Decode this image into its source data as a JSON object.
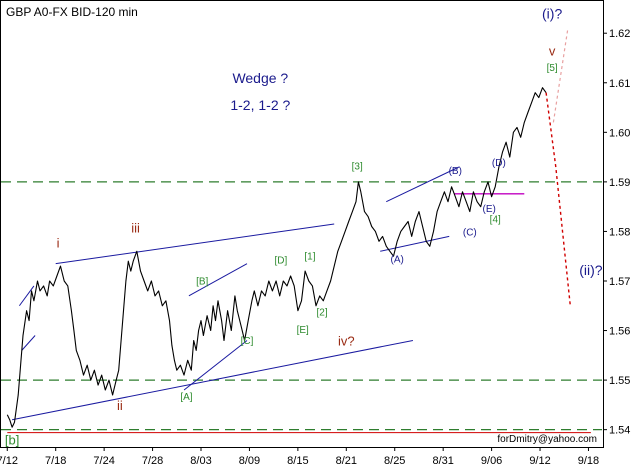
{
  "chart_data": {
    "type": "line",
    "title": "GBP A0-FX BID-120 min",
    "watermark": "forDmitry@yahoo.com",
    "colors": {
      "price": "#000000",
      "channel": "#1a1aa0",
      "hline": "#2e7d2e",
      "magenta": "#c000c0",
      "forecast": "#d00000",
      "forecast_alt": "#e8a0a0",
      "green_label": "#2e8b2e",
      "red_label": "#9a2b14",
      "blue_label": "#1a1a8c",
      "axis_text": "#000000"
    },
    "y_ticks": [
      "1.62",
      "1.61",
      "1.60",
      "1.59",
      "1.58",
      "1.57",
      "1.56",
      "1.55",
      "1.54"
    ],
    "y_tick_values": [
      1.62,
      1.61,
      1.6,
      1.59,
      1.58,
      1.57,
      1.56,
      1.55,
      1.54
    ],
    "x_ticks": [
      "7/12",
      "7/18",
      "7/24",
      "7/28",
      "8/03",
      "8/09",
      "8/15",
      "8/21",
      "8/25",
      "8/31",
      "9/06",
      "9/12",
      "9/18"
    ],
    "x_tick_index": [
      0,
      4,
      8,
      12,
      16,
      20,
      24,
      28,
      32,
      36,
      40,
      44,
      48
    ],
    "ylim": [
      1.5365,
      1.6265
    ],
    "xlim": [
      -0.6,
      49.2
    ],
    "price_series": [
      [
        0.0,
        1.543
      ],
      [
        0.2,
        1.542
      ],
      [
        0.4,
        1.5405
      ],
      [
        0.6,
        1.5415
      ],
      [
        0.9,
        1.547
      ],
      [
        1.1,
        1.553
      ],
      [
        1.3,
        1.559
      ],
      [
        1.6,
        1.564
      ],
      [
        1.8,
        1.562
      ],
      [
        2.0,
        1.568
      ],
      [
        2.2,
        1.566
      ],
      [
        2.5,
        1.57
      ],
      [
        2.7,
        1.568
      ],
      [
        3.0,
        1.569
      ],
      [
        3.3,
        1.567
      ],
      [
        3.5,
        1.57
      ],
      [
        3.8,
        1.569
      ],
      [
        4.1,
        1.571
      ],
      [
        4.4,
        1.573
      ],
      [
        4.7,
        1.57
      ],
      [
        5.0,
        1.569
      ],
      [
        5.3,
        1.564
      ],
      [
        5.5,
        1.56
      ],
      [
        5.7,
        1.556
      ],
      [
        6.0,
        1.554
      ],
      [
        6.3,
        1.551
      ],
      [
        6.6,
        1.553
      ],
      [
        6.9,
        1.55
      ],
      [
        7.2,
        1.552
      ],
      [
        7.5,
        1.549
      ],
      [
        7.8,
        1.551
      ],
      [
        8.1,
        1.548
      ],
      [
        8.4,
        1.55
      ],
      [
        8.7,
        1.547
      ],
      [
        9.0,
        1.55
      ],
      [
        9.2,
        1.552
      ],
      [
        9.4,
        1.558
      ],
      [
        9.6,
        1.564
      ],
      [
        9.8,
        1.57
      ],
      [
        10.0,
        1.574
      ],
      [
        10.2,
        1.572
      ],
      [
        10.4,
        1.574
      ],
      [
        10.7,
        1.576
      ],
      [
        11.0,
        1.572
      ],
      [
        11.3,
        1.57
      ],
      [
        11.6,
        1.568
      ],
      [
        11.9,
        1.57
      ],
      [
        12.2,
        1.567
      ],
      [
        12.5,
        1.568
      ],
      [
        12.8,
        1.565
      ],
      [
        13.1,
        1.566
      ],
      [
        13.4,
        1.562
      ],
      [
        13.6,
        1.557
      ],
      [
        13.8,
        1.554
      ],
      [
        14.0,
        1.552
      ],
      [
        14.3,
        1.553
      ],
      [
        14.6,
        1.551
      ],
      [
        14.9,
        1.554
      ],
      [
        15.2,
        1.552
      ],
      [
        15.4,
        1.558
      ],
      [
        15.6,
        1.556
      ],
      [
        15.8,
        1.56
      ],
      [
        16.0,
        1.562
      ],
      [
        16.2,
        1.559
      ],
      [
        16.5,
        1.563
      ],
      [
        16.8,
        1.56
      ],
      [
        17.0,
        1.565
      ],
      [
        17.2,
        1.562
      ],
      [
        17.4,
        1.566
      ],
      [
        17.7,
        1.562
      ],
      [
        17.9,
        1.558
      ],
      [
        18.2,
        1.564
      ],
      [
        18.5,
        1.56
      ],
      [
        18.8,
        1.567
      ],
      [
        19.0,
        1.564
      ],
      [
        19.3,
        1.561
      ],
      [
        19.6,
        1.558
      ],
      [
        19.9,
        1.562
      ],
      [
        20.2,
        1.566
      ],
      [
        20.4,
        1.568
      ],
      [
        20.7,
        1.565
      ],
      [
        21.0,
        1.568
      ],
      [
        21.3,
        1.567
      ],
      [
        21.6,
        1.57
      ],
      [
        21.9,
        1.568
      ],
      [
        22.2,
        1.57
      ],
      [
        22.5,
        1.567
      ],
      [
        22.8,
        1.57
      ],
      [
        23.1,
        1.569
      ],
      [
        23.4,
        1.571
      ],
      [
        23.7,
        1.569
      ],
      [
        24.0,
        1.564
      ],
      [
        24.3,
        1.566
      ],
      [
        24.6,
        1.572
      ],
      [
        24.9,
        1.57
      ],
      [
        25.2,
        1.569
      ],
      [
        25.5,
        1.565
      ],
      [
        25.8,
        1.567
      ],
      [
        26.1,
        1.566
      ],
      [
        26.4,
        1.568
      ],
      [
        26.7,
        1.57
      ],
      [
        27.0,
        1.573
      ],
      [
        27.3,
        1.576
      ],
      [
        27.6,
        1.578
      ],
      [
        27.9,
        1.58
      ],
      [
        28.2,
        1.582
      ],
      [
        28.5,
        1.584
      ],
      [
        28.8,
        1.586
      ],
      [
        29.0,
        1.59
      ],
      [
        29.2,
        1.588
      ],
      [
        29.5,
        1.584
      ],
      [
        29.8,
        1.583
      ],
      [
        30.1,
        1.581
      ],
      [
        30.4,
        1.58
      ],
      [
        30.7,
        1.578
      ],
      [
        31.0,
        1.579
      ],
      [
        31.3,
        1.577
      ],
      [
        31.6,
        1.576
      ],
      [
        31.9,
        1.575
      ],
      [
        32.2,
        1.578
      ],
      [
        32.5,
        1.58
      ],
      [
        32.8,
        1.581
      ],
      [
        33.1,
        1.582
      ],
      [
        33.4,
        1.579
      ],
      [
        33.7,
        1.582
      ],
      [
        34.0,
        1.584
      ],
      [
        34.3,
        1.581
      ],
      [
        34.6,
        1.578
      ],
      [
        34.9,
        1.577
      ],
      [
        35.2,
        1.58
      ],
      [
        35.5,
        1.584
      ],
      [
        35.8,
        1.586
      ],
      [
        36.1,
        1.588
      ],
      [
        36.4,
        1.586
      ],
      [
        36.7,
        1.589
      ],
      [
        37.0,
        1.587
      ],
      [
        37.3,
        1.585
      ],
      [
        37.6,
        1.588
      ],
      [
        37.9,
        1.586
      ],
      [
        38.2,
        1.584
      ],
      [
        38.5,
        1.588
      ],
      [
        38.8,
        1.586
      ],
      [
        39.1,
        1.585
      ],
      [
        39.4,
        1.588
      ],
      [
        39.7,
        1.59
      ],
      [
        40.0,
        1.587
      ],
      [
        40.3,
        1.589
      ],
      [
        40.6,
        1.593
      ],
      [
        40.9,
        1.596
      ],
      [
        41.2,
        1.598
      ],
      [
        41.5,
        1.595
      ],
      [
        41.8,
        1.6
      ],
      [
        42.1,
        1.601
      ],
      [
        42.4,
        1.599
      ],
      [
        42.7,
        1.602
      ],
      [
        43.0,
        1.604
      ],
      [
        43.3,
        1.606
      ],
      [
        43.6,
        1.608
      ],
      [
        43.9,
        1.607
      ],
      [
        44.2,
        1.609
      ],
      [
        44.5,
        1.608
      ]
    ],
    "channel_lines": [
      {
        "from": [
          4.0,
          1.5735
        ],
        "to": [
          27.0,
          1.5815
        ]
      },
      {
        "from": [
          1.0,
          1.565
        ],
        "to": [
          2.2,
          1.569
        ]
      },
      {
        "from": [
          1.2,
          1.556
        ],
        "to": [
          2.3,
          1.559
        ]
      },
      {
        "from": [
          0.4,
          1.542
        ],
        "to": [
          33.5,
          1.558
        ]
      },
      {
        "from": [
          14.6,
          1.548
        ],
        "to": [
          19.8,
          1.558
        ]
      },
      {
        "from": [
          15.0,
          1.567
        ],
        "to": [
          19.8,
          1.5735
        ]
      },
      {
        "from": [
          30.8,
          1.576
        ],
        "to": [
          36.5,
          1.579
        ]
      },
      {
        "from": [
          31.3,
          1.586
        ],
        "to": [
          37.3,
          1.593
        ]
      }
    ],
    "horizontal_levels": [
      1.59,
      1.55,
      1.54
    ],
    "magenta_line": {
      "from": [
        36.9,
        1.5876
      ],
      "to": [
        42.7,
        1.5876
      ]
    },
    "bottom_red_line": {
      "from": [
        0.0,
        1.5394
      ],
      "to": [
        48.2,
        1.5394
      ]
    },
    "forecast_main": [
      [
        44.5,
        1.608
      ],
      [
        45.3,
        1.593
      ],
      [
        46.5,
        1.565
      ]
    ],
    "forecast_alt": [
      [
        45.1,
        1.602
      ],
      [
        46.3,
        1.621
      ]
    ],
    "labels": [
      {
        "text": "Wedge ?",
        "x": 20.9,
        "y": 1.61,
        "color": "blue_label",
        "size": 14
      },
      {
        "text": "1-2, 1-2 ?",
        "x": 20.9,
        "y": 1.6045,
        "color": "blue_label",
        "size": 14
      },
      {
        "text": "(i)?",
        "x": 45.0,
        "y": 1.623,
        "color": "blue_label",
        "size": 14
      },
      {
        "text": "v",
        "x": 45.0,
        "y": 1.6155,
        "color": "red_label",
        "size": 13
      },
      {
        "text": "[5]",
        "x": 45.0,
        "y": 1.6124,
        "color": "green_label",
        "size": 10
      },
      {
        "text": "(ii)?",
        "x": 48.2,
        "y": 1.5712,
        "color": "blue_label",
        "size": 14
      },
      {
        "text": "i",
        "x": 4.2,
        "y": 1.5768,
        "color": "red_label",
        "size": 13
      },
      {
        "text": "iii",
        "x": 10.6,
        "y": 1.5798,
        "color": "red_label",
        "size": 13
      },
      {
        "text": "ii",
        "x": 9.3,
        "y": 1.544,
        "color": "red_label",
        "size": 13
      },
      {
        "text": "iv?",
        "x": 28.0,
        "y": 1.557,
        "color": "red_label",
        "size": 13
      },
      {
        "text": "[b]",
        "x": 0.4,
        "y": 1.537,
        "color": "green_label",
        "size": 13
      },
      {
        "text": "[A]",
        "x": 14.8,
        "y": 1.546,
        "color": "green_label",
        "size": 10
      },
      {
        "text": "[B]",
        "x": 16.1,
        "y": 1.5693,
        "color": "green_label",
        "size": 10
      },
      {
        "text": "[C]",
        "x": 19.8,
        "y": 1.5573,
        "color": "green_label",
        "size": 10
      },
      {
        "text": "[D]",
        "x": 22.6,
        "y": 1.5735,
        "color": "green_label",
        "size": 10
      },
      {
        "text": "[1]",
        "x": 25.0,
        "y": 1.5743,
        "color": "green_label",
        "size": 10
      },
      {
        "text": "[2]",
        "x": 26.0,
        "y": 1.563,
        "color": "green_label",
        "size": 10
      },
      {
        "text": "[E]",
        "x": 24.4,
        "y": 1.5595,
        "color": "green_label",
        "size": 10
      },
      {
        "text": "[3]",
        "x": 28.9,
        "y": 1.5925,
        "color": "green_label",
        "size": 10
      },
      {
        "text": "[4]",
        "x": 40.3,
        "y": 1.5818,
        "color": "green_label",
        "size": 10
      },
      {
        "text": "(A)",
        "x": 32.2,
        "y": 1.5737,
        "color": "blue_label",
        "size": 10
      },
      {
        "text": "(B)",
        "x": 37.0,
        "y": 1.5916,
        "color": "blue_label",
        "size": 10
      },
      {
        "text": "(C)",
        "x": 38.2,
        "y": 1.5792,
        "color": "blue_label",
        "size": 10
      },
      {
        "text": "(D)",
        "x": 40.6,
        "y": 1.5932,
        "color": "blue_label",
        "size": 10
      },
      {
        "text": "(E)",
        "x": 39.8,
        "y": 1.5839,
        "color": "blue_label",
        "size": 10
      }
    ]
  }
}
